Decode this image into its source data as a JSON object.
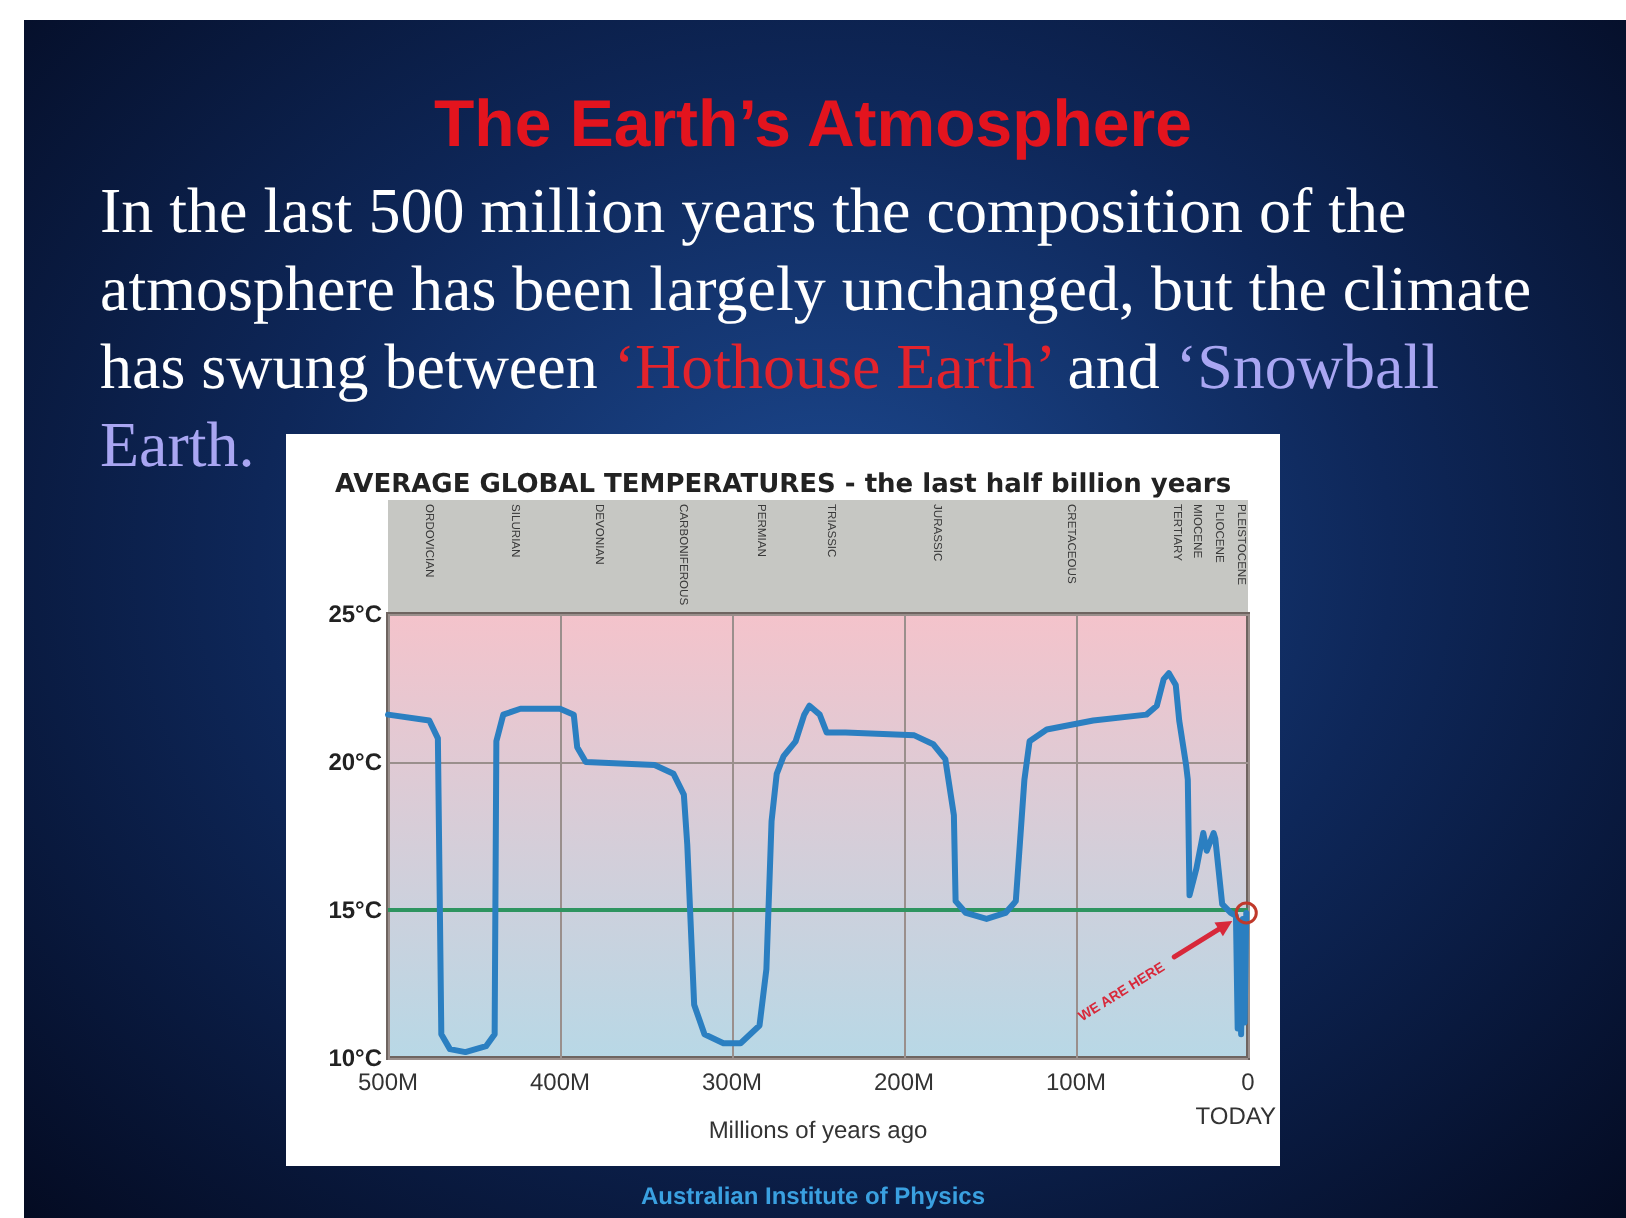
{
  "chart_data": {
    "type": "line",
    "title": "The Earth’s Atmosphere",
    "subtitle": "AVERAGE GLOBAL TEMPERATURES - the last half billion years",
    "xlabel": "Millions of years ago",
    "x": [
      500,
      476,
      471,
      469,
      464,
      455,
      443,
      438,
      437,
      433,
      423,
      400,
      392,
      390,
      385,
      345,
      334,
      328,
      326,
      322,
      316,
      305,
      295,
      284,
      280,
      277,
      274,
      270,
      263,
      258,
      255,
      249,
      245,
      234,
      194,
      183,
      176,
      171,
      170,
      164,
      152,
      141,
      135,
      130,
      127,
      117,
      90,
      59,
      53,
      49,
      46,
      42,
      40,
      36,
      35,
      34,
      30,
      26,
      24,
      20,
      19,
      15,
      10,
      7,
      6,
      5,
      4,
      3,
      2,
      1
    ],
    "values": [
      21.6,
      21.4,
      20.8,
      10.8,
      10.3,
      10.2,
      10.4,
      10.8,
      20.7,
      21.6,
      21.8,
      21.8,
      21.6,
      20.5,
      20.0,
      19.9,
      19.6,
      18.9,
      17.2,
      11.8,
      10.8,
      10.5,
      10.5,
      11.1,
      13.0,
      18.0,
      19.6,
      20.2,
      20.7,
      21.6,
      21.9,
      21.6,
      21.0,
      21.0,
      20.9,
      20.6,
      20.1,
      18.2,
      15.3,
      14.9,
      14.7,
      14.9,
      15.3,
      19.4,
      20.7,
      21.1,
      21.4,
      21.6,
      21.9,
      22.8,
      23.0,
      22.6,
      21.4,
      19.9,
      19.4,
      15.5,
      16.4,
      17.6,
      17.0,
      17.6,
      17.4,
      15.2,
      14.9,
      14.8,
      11.0,
      14.6,
      10.8,
      14.7,
      11.2,
      14.9
    ],
    "color": "#2b7fc1",
    "marker": "none",
    "grid": true,
    "xlim": [
      500,
      0
    ],
    "xticks": [
      {
        "value": 500,
        "label": "500M"
      },
      {
        "value": 400,
        "label": "400M"
      },
      {
        "value": 300,
        "label": "300M"
      },
      {
        "value": 200,
        "label": "200M"
      },
      {
        "value": 100,
        "label": "100M"
      },
      0
    ],
    "ylim": [
      10,
      25
    ],
    "yticks": [
      {
        "value": 10,
        "label": "10°C"
      },
      {
        "value": 15,
        "label": "15°C"
      },
      {
        "value": 20,
        "label": "20°C"
      },
      {
        "value": 25,
        "label": "25°C"
      }
    ],
    "ref_lines": [
      {
        "axis": "y",
        "value": 15,
        "color": "#2e9460"
      }
    ],
    "annotations": [
      "In the last 500 million years the composition of the",
      "atmosphere has been largely unchanged, but the climate",
      "has swung between",
      "‘Hothouse Earth’",
      "and",
      "‘Snowball",
      "Earth.",
      "ORDOVICIAN",
      "SILURIAN",
      "DEVONIAN",
      "CARBONIFEROUS",
      "PERMIAN",
      "TRIASSIC",
      "JURASSIC",
      "CRETACEOUS",
      "TERTIARY",
      "MIOCENE",
      "PLIOCENE",
      "PLEISTOCENE",
      "WE ARE HERE",
      "TODAY",
      "Australian Institute of Physics"
    ]
  }
}
